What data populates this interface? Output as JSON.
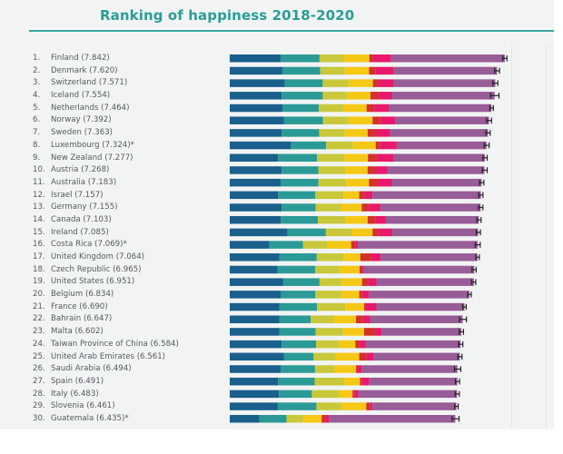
{
  "chart_data": {
    "type": "bar",
    "orientation": "horizontal",
    "stacked": true,
    "title": "Ranking of happiness 2018-2020",
    "xlabel": "",
    "ylabel": "",
    "xlim": [
      0,
      8
    ],
    "grid": true,
    "legend": "none",
    "segment_colors": [
      "#1b5f8c",
      "#2b9a96",
      "#c8c83a",
      "#f5c816",
      "#d1322a",
      "#e8186a",
      "#985c97"
    ],
    "error_bar_color": "#222222",
    "rows": [
      {
        "rank": "1.",
        "name": "Finland",
        "score": "7.842",
        "note": "",
        "segments": [
          1.45,
          1.11,
          0.7,
          0.72,
          0.1,
          0.52,
          3.24
        ],
        "ci": 0.06
      },
      {
        "rank": "2.",
        "name": "Denmark",
        "score": "7.620",
        "note": "",
        "segments": [
          1.5,
          1.08,
          0.7,
          0.69,
          0.18,
          0.52,
          2.95
        ],
        "ci": 0.07
      },
      {
        "rank": "3.",
        "name": "Switzerland",
        "score": "7.571",
        "note": "",
        "segments": [
          1.57,
          1.08,
          0.73,
          0.7,
          0.15,
          0.45,
          2.89
        ],
        "ci": 0.07
      },
      {
        "rank": "4.",
        "name": "Iceland",
        "score": "7.554",
        "note": "",
        "segments": [
          1.48,
          1.17,
          0.7,
          0.66,
          0.24,
          0.37,
          2.93
        ],
        "ci": 0.12
      },
      {
        "rank": "5.",
        "name": "Netherlands",
        "score": "7.464",
        "note": "",
        "segments": [
          1.5,
          1.04,
          0.71,
          0.65,
          0.22,
          0.41,
          2.93
        ],
        "ci": 0.05
      },
      {
        "rank": "6.",
        "name": "Norway",
        "score": "7.392",
        "note": "",
        "segments": [
          1.54,
          1.12,
          0.72,
          0.69,
          0.22,
          0.42,
          2.68
        ],
        "ci": 0.07
      },
      {
        "rank": "7.",
        "name": "Sweden",
        "score": "7.363",
        "note": "",
        "segments": [
          1.48,
          1.07,
          0.73,
          0.65,
          0.25,
          0.39,
          2.79
        ],
        "ci": 0.06
      },
      {
        "rank": "8.",
        "name": "Luxembourg",
        "score": "7.324",
        "note": "*",
        "segments": [
          1.75,
          1.0,
          0.76,
          0.65,
          0.13,
          0.47,
          2.56
        ],
        "ci": 0.07
      },
      {
        "rank": "9.",
        "name": "New Zealand",
        "score": "7.277",
        "note": "",
        "segments": [
          1.38,
          1.11,
          0.78,
          0.67,
          0.27,
          0.47,
          2.59
        ],
        "ci": 0.06
      },
      {
        "rank": "10.",
        "name": "Austria",
        "score": "7.268",
        "note": "",
        "segments": [
          1.48,
          1.05,
          0.76,
          0.64,
          0.21,
          0.35,
          2.77
        ],
        "ci": 0.07
      },
      {
        "rank": "11.",
        "name": "Australia",
        "score": "7.183",
        "note": "",
        "segments": [
          1.45,
          1.08,
          0.79,
          0.65,
          0.26,
          0.39,
          2.56
        ],
        "ci": 0.06
      },
      {
        "rank": "12.",
        "name": "Israel",
        "score": "7.157",
        "note": "",
        "segments": [
          1.38,
          1.06,
          0.8,
          0.45,
          0.15,
          0.23,
          3.09
        ],
        "ci": 0.06
      },
      {
        "rank": "13.",
        "name": "Germany",
        "score": "7.155",
        "note": "",
        "segments": [
          1.48,
          0.97,
          0.72,
          0.59,
          0.21,
          0.33,
          2.85
        ],
        "ci": 0.06
      },
      {
        "rank": "14.",
        "name": "Canada",
        "score": "7.103",
        "note": "",
        "segments": [
          1.45,
          1.06,
          0.78,
          0.64,
          0.22,
          0.3,
          2.65
        ],
        "ci": 0.06
      },
      {
        "rank": "15.",
        "name": "Ireland",
        "score": "7.085",
        "note": "",
        "segments": [
          1.65,
          1.09,
          0.73,
          0.6,
          0.17,
          0.38,
          2.46
        ],
        "ci": 0.06
      },
      {
        "rank": "16.",
        "name": "Costa Rica",
        "score": "7.069",
        "note": "*",
        "segments": [
          1.13,
          0.96,
          0.7,
          0.67,
          0.12,
          0.07,
          3.42
        ],
        "ci": 0.07
      },
      {
        "rank": "17.",
        "name": "United Kingdom",
        "score": "7.064",
        "note": "",
        "segments": [
          1.41,
          1.07,
          0.76,
          0.48,
          0.3,
          0.28,
          2.76
        ],
        "ci": 0.05
      },
      {
        "rank": "18.",
        "name": "Czech Republic",
        "score": "6.965",
        "note": "",
        "segments": [
          1.36,
          1.08,
          0.69,
          0.57,
          0.08,
          0.04,
          3.15
        ],
        "ci": 0.06
      },
      {
        "rank": "19.",
        "name": "United States",
        "score": "6.951",
        "note": "",
        "segments": [
          1.53,
          1.03,
          0.63,
          0.58,
          0.18,
          0.23,
          2.78
        ],
        "ci": 0.06
      },
      {
        "rank": "20.",
        "name": "Belgium",
        "score": "6.834",
        "note": "",
        "segments": [
          1.46,
          0.98,
          0.74,
          0.51,
          0.08,
          0.2,
          2.86
        ],
        "ci": 0.05
      },
      {
        "rank": "21.",
        "name": "France",
        "score": "6.690",
        "note": "",
        "segments": [
          1.41,
          1.08,
          0.8,
          0.54,
          0.05,
          0.3,
          2.51
        ],
        "ci": 0.05
      },
      {
        "rank": "22.",
        "name": "Bahrain",
        "score": "6.647",
        "note": "",
        "segments": [
          1.41,
          0.9,
          0.66,
          0.63,
          0.2,
          0.2,
          2.64
        ],
        "ci": 0.1
      },
      {
        "rank": "23.",
        "name": "Malta",
        "score": "6.602",
        "note": "",
        "segments": [
          1.41,
          1.04,
          0.78,
          0.6,
          0.3,
          0.2,
          2.27
        ],
        "ci": 0.06
      },
      {
        "rank": "24.",
        "name": "Taiwan Province of China",
        "score": "6.584",
        "note": "",
        "segments": [
          1.48,
          0.98,
          0.66,
          0.46,
          0.13,
          0.16,
          2.71
        ],
        "ci": 0.06
      },
      {
        "rank": "25.",
        "name": "United Arab Emirates",
        "score": "6.561",
        "note": "",
        "segments": [
          1.55,
          0.84,
          0.61,
          0.69,
          0.2,
          0.21,
          2.46
        ],
        "ci": 0.06
      },
      {
        "rank": "26.",
        "name": "Saudi Arabia",
        "score": "6.494",
        "note": "",
        "segments": [
          1.45,
          0.98,
          0.55,
          0.62,
          0.05,
          0.12,
          2.72
        ],
        "ci": 0.09
      },
      {
        "rank": "27.",
        "name": "Spain",
        "score": "6.491",
        "note": "",
        "segments": [
          1.38,
          1.04,
          0.84,
          0.45,
          0.05,
          0.22,
          2.51
        ],
        "ci": 0.06
      },
      {
        "rank": "28.",
        "name": "Italy",
        "score": "6.483",
        "note": "",
        "segments": [
          1.4,
          0.94,
          0.78,
          0.38,
          0.05,
          0.12,
          2.81
        ],
        "ci": 0.06
      },
      {
        "rank": "29.",
        "name": "Slovenia",
        "score": "6.461",
        "note": "",
        "segments": [
          1.37,
          1.1,
          0.72,
          0.7,
          0.1,
          0.08,
          2.39
        ],
        "ci": 0.05
      },
      {
        "rank": "30.",
        "name": "Guatemala",
        "score": "6.435",
        "note": "*",
        "segments": [
          0.85,
          0.77,
          0.47,
          0.53,
          0.1,
          0.12,
          3.59
        ],
        "ci": 0.1
      }
    ]
  }
}
